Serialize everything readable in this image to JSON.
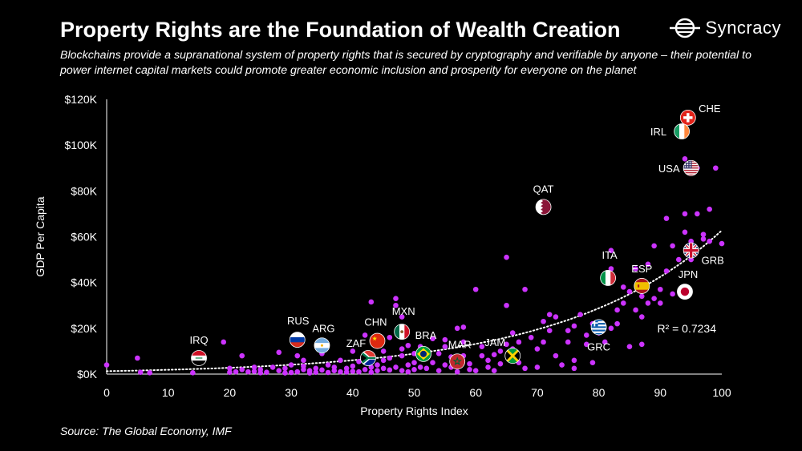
{
  "header": {
    "title": "Property Rights are the Foundation of Wealth Creation",
    "subtitle": "Blockchains provide a supranational system of property rights that is secured by cryptography and verifiable by anyone – their potential to power internet capital markets could promote greater economic inclusion and prosperity for everyone on the planet",
    "brand": "Syncracy"
  },
  "footer": {
    "source": "Source: The Global Economy, IMF"
  },
  "colors": {
    "background": "#000000",
    "point": "#cc33ff",
    "text": "#ffffff",
    "axis": "#ffffff"
  },
  "chart_data": {
    "type": "scatter",
    "title": "Property Rights are the Foundation of Wealth Creation",
    "xlabel": "Property Rights Index",
    "ylabel": "GDP Per Capita",
    "xlim": [
      0,
      100
    ],
    "ylim": [
      0,
      120000
    ],
    "xticks": [
      0,
      10,
      20,
      30,
      40,
      50,
      60,
      70,
      80,
      90,
      100
    ],
    "yticks": [
      0,
      20000,
      40000,
      60000,
      80000,
      100000,
      120000
    ],
    "ytick_labels": [
      "$0K",
      "$20K",
      "$40K",
      "$60K",
      "$80K",
      "$100K",
      "$120K"
    ],
    "trendline": {
      "type": "exponential",
      "a": 1270,
      "b": 0.039,
      "label": "R² = 0.7234"
    },
    "labeled_points": [
      {
        "code": "CHE",
        "x": 94.5,
        "y": 112000,
        "flag": "CHE"
      },
      {
        "code": "IRL",
        "x": 93.5,
        "y": 106000,
        "flag": "IRL"
      },
      {
        "code": "USA",
        "x": 95,
        "y": 90000,
        "flag": "USA"
      },
      {
        "code": "QAT",
        "x": 71,
        "y": 73000,
        "flag": "QAT"
      },
      {
        "code": "GRB",
        "x": 95,
        "y": 54000,
        "flag": "GBR"
      },
      {
        "code": "ITA",
        "x": 81.5,
        "y": 42000,
        "flag": "ITA"
      },
      {
        "code": "ESP",
        "x": 87,
        "y": 38500,
        "flag": "ESP"
      },
      {
        "code": "JPN",
        "x": 94,
        "y": 36000,
        "flag": "JPN"
      },
      {
        "code": "GRC",
        "x": 80,
        "y": 20500,
        "flag": "GRC"
      },
      {
        "code": "RUS",
        "x": 31,
        "y": 15000,
        "flag": "RUS"
      },
      {
        "code": "ARG",
        "x": 35,
        "y": 12500,
        "flag": "ARG"
      },
      {
        "code": "MXN",
        "x": 48,
        "y": 18500,
        "flag": "MEX"
      },
      {
        "code": "CHN",
        "x": 44,
        "y": 14500,
        "flag": "CHN"
      },
      {
        "code": "BRA",
        "x": 51.5,
        "y": 8800,
        "flag": "BRA"
      },
      {
        "code": "ZAF",
        "x": 42.5,
        "y": 7000,
        "flag": "ZAF"
      },
      {
        "code": "MAR",
        "x": 57,
        "y": 5500,
        "flag": "MAR"
      },
      {
        "code": "JAM",
        "x": 66,
        "y": 8000,
        "flag": "JAM"
      },
      {
        "code": "IRQ",
        "x": 15,
        "y": 7000,
        "flag": "IRQ"
      }
    ],
    "points": [
      [
        0,
        4000
      ],
      [
        5,
        7000
      ],
      [
        5.5,
        800
      ],
      [
        7,
        600
      ],
      [
        14,
        600
      ],
      [
        19,
        14000
      ],
      [
        20,
        800
      ],
      [
        20,
        2500
      ],
      [
        21,
        1000
      ],
      [
        22,
        8000
      ],
      [
        22,
        2000
      ],
      [
        23,
        1000
      ],
      [
        24,
        3000
      ],
      [
        24,
        1200
      ],
      [
        25,
        2000
      ],
      [
        25,
        600
      ],
      [
        26,
        800
      ],
      [
        27,
        3000
      ],
      [
        28,
        9500
      ],
      [
        28,
        1500
      ],
      [
        29,
        2500
      ],
      [
        29,
        500
      ],
      [
        30,
        700
      ],
      [
        30,
        4000
      ],
      [
        31,
        1000
      ],
      [
        31,
        8000
      ],
      [
        32,
        2000
      ],
      [
        32,
        3500
      ],
      [
        32,
        6000
      ],
      [
        33,
        500
      ],
      [
        33,
        1500
      ],
      [
        34,
        800
      ],
      [
        34,
        2500
      ],
      [
        35,
        9000
      ],
      [
        35,
        1800
      ],
      [
        36,
        700
      ],
      [
        36,
        4000
      ],
      [
        37,
        1500
      ],
      [
        37,
        3000
      ],
      [
        38,
        1000
      ],
      [
        38,
        6000
      ],
      [
        39,
        2500
      ],
      [
        39,
        900
      ],
      [
        40,
        10000
      ],
      [
        40,
        3500
      ],
      [
        40,
        1200
      ],
      [
        41,
        1000
      ],
      [
        41,
        5500
      ],
      [
        42,
        17000
      ],
      [
        42,
        2000
      ],
      [
        43,
        3000
      ],
      [
        43,
        800
      ],
      [
        43,
        31500
      ],
      [
        44,
        1500
      ],
      [
        44,
        4000
      ],
      [
        45,
        10000
      ],
      [
        45,
        6000
      ],
      [
        45,
        2500
      ],
      [
        46,
        1800
      ],
      [
        46,
        7000
      ],
      [
        46,
        16000
      ],
      [
        47,
        30000
      ],
      [
        47,
        33000
      ],
      [
        47,
        3000
      ],
      [
        48,
        1500
      ],
      [
        48,
        8000
      ],
      [
        48,
        11000
      ],
      [
        48,
        25000
      ],
      [
        49,
        12500
      ],
      [
        49,
        4000
      ],
      [
        49,
        1000
      ],
      [
        50,
        2000
      ],
      [
        50,
        5000
      ],
      [
        50,
        9000
      ],
      [
        51,
        12000
      ],
      [
        51,
        3000
      ],
      [
        52,
        7000
      ],
      [
        52,
        2500
      ],
      [
        53,
        15500
      ],
      [
        53,
        5000
      ],
      [
        54,
        9000
      ],
      [
        54,
        1500
      ],
      [
        55,
        4000
      ],
      [
        55,
        12000
      ],
      [
        55,
        15000
      ],
      [
        56,
        3000
      ],
      [
        56,
        7500
      ],
      [
        57,
        20000
      ],
      [
        57,
        1000
      ],
      [
        58,
        8000
      ],
      [
        58,
        14000
      ],
      [
        58,
        20500
      ],
      [
        59,
        2000
      ],
      [
        59,
        4500
      ],
      [
        60,
        37000
      ],
      [
        60,
        1500
      ],
      [
        61,
        8000
      ],
      [
        61,
        12000
      ],
      [
        62,
        3000
      ],
      [
        62,
        6000
      ],
      [
        63,
        8500
      ],
      [
        63,
        1500
      ],
      [
        64,
        10000
      ],
      [
        64,
        4500
      ],
      [
        65,
        51000
      ],
      [
        65,
        30000
      ],
      [
        65,
        13000
      ],
      [
        66,
        18000
      ],
      [
        66,
        6000
      ],
      [
        66,
        11000
      ],
      [
        67,
        5000
      ],
      [
        67,
        14000
      ],
      [
        68,
        37000
      ],
      [
        68,
        2500
      ],
      [
        69,
        16000
      ],
      [
        70,
        11000
      ],
      [
        70,
        3000
      ],
      [
        71,
        23000
      ],
      [
        71,
        14000
      ],
      [
        72,
        26000
      ],
      [
        72,
        19000
      ],
      [
        73,
        25000
      ],
      [
        73,
        8000
      ],
      [
        74,
        4000
      ],
      [
        75,
        14000
      ],
      [
        75,
        19000
      ],
      [
        76,
        6000
      ],
      [
        76,
        2500
      ],
      [
        76,
        21000
      ],
      [
        77,
        26000
      ],
      [
        78,
        13000
      ],
      [
        78,
        17000
      ],
      [
        79,
        22000
      ],
      [
        79,
        5000
      ],
      [
        80,
        18000
      ],
      [
        80,
        21000
      ],
      [
        81,
        14000
      ],
      [
        82,
        46000
      ],
      [
        82,
        54000
      ],
      [
        82,
        20000
      ],
      [
        83,
        28000
      ],
      [
        83,
        22000
      ],
      [
        84,
        38000
      ],
      [
        84,
        31000
      ],
      [
        85,
        12000
      ],
      [
        85,
        36000
      ],
      [
        86,
        28000
      ],
      [
        86,
        46000
      ],
      [
        87,
        34000
      ],
      [
        87,
        25000
      ],
      [
        87,
        13000
      ],
      [
        88,
        48000
      ],
      [
        88,
        31000
      ],
      [
        89,
        33000
      ],
      [
        89,
        56000
      ],
      [
        90,
        37000
      ],
      [
        90,
        31000
      ],
      [
        91,
        45000
      ],
      [
        91,
        68000
      ],
      [
        92,
        56000
      ],
      [
        92,
        35000
      ],
      [
        93,
        50000
      ],
      [
        94,
        94000
      ],
      [
        94,
        70000
      ],
      [
        94,
        62000
      ],
      [
        95,
        58000
      ],
      [
        95,
        50000
      ],
      [
        96,
        90000
      ],
      [
        96,
        70000
      ],
      [
        97,
        61000
      ],
      [
        97,
        59000
      ],
      [
        98,
        72000
      ],
      [
        98,
        58000
      ],
      [
        99,
        90000
      ],
      [
        100,
        57000
      ]
    ]
  }
}
